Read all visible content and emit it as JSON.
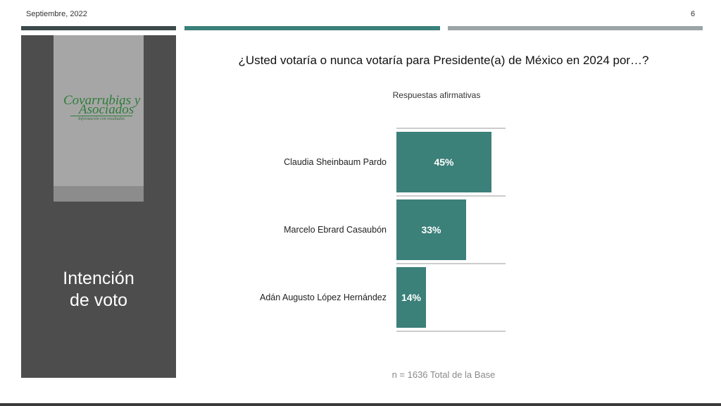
{
  "header": {
    "date": "Septiembre, 2022",
    "page_number": "6"
  },
  "sidebar": {
    "logo_line1": "Covarrubias y",
    "logo_line2": "Asociados",
    "logo_tagline": "Información con resultados",
    "section_title_line1": "Intención",
    "section_title_line2": "de voto"
  },
  "colors": {
    "accent": "#3b8079",
    "sidebar": "#4d4d4d",
    "logo_green": "#2e7d3a"
  },
  "chart_data": {
    "type": "bar",
    "orientation": "horizontal",
    "title": "¿Usted votaría o nunca votaría para Presidente(a) de México en 2024 por…?",
    "subtitle": "Respuestas afirmativas",
    "categories": [
      "Claudia Sheinbaum Pardo",
      "Marcelo Ebrard Casaubón",
      "Adán Augusto López Hernández"
    ],
    "values": [
      45,
      33,
      14
    ],
    "data_labels": [
      "45%",
      "33%",
      "14%"
    ],
    "xlim": [
      0,
      50
    ],
    "unit": "%",
    "grid": true,
    "legend": "none",
    "bar_color": "#3b8079"
  },
  "footer_note": "n =  1636 Total de la Base"
}
